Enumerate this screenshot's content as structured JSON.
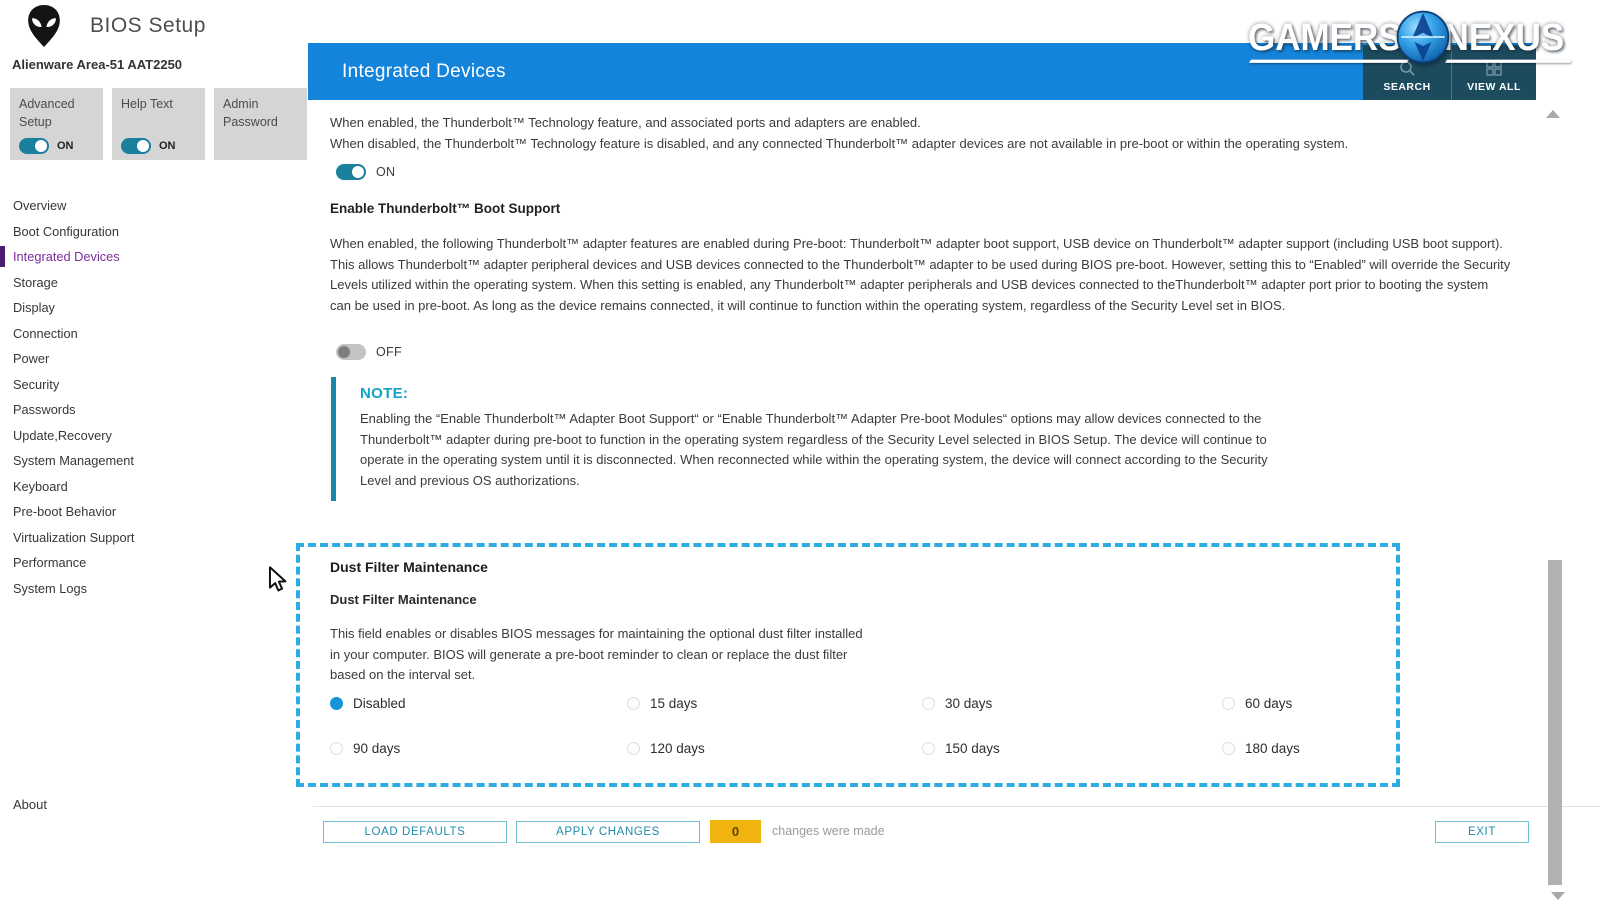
{
  "window": {
    "app_title": "BIOS Setup",
    "model": "Alienware Area-51 AAT2250"
  },
  "header_toggles": [
    {
      "label": "Advanced Setup",
      "state": "ON"
    },
    {
      "label": "Help Text",
      "state": "ON"
    },
    {
      "label": "Admin Password",
      "state": null
    }
  ],
  "sidebar": {
    "items": [
      {
        "label": "Overview",
        "selected": false
      },
      {
        "label": "Boot Configuration",
        "selected": false
      },
      {
        "label": "Integrated Devices",
        "selected": true
      },
      {
        "label": "Storage",
        "selected": false
      },
      {
        "label": "Display",
        "selected": false
      },
      {
        "label": "Connection",
        "selected": false
      },
      {
        "label": "Power",
        "selected": false
      },
      {
        "label": "Security",
        "selected": false
      },
      {
        "label": "Passwords",
        "selected": false
      },
      {
        "label": "Update,Recovery",
        "selected": false
      },
      {
        "label": "System Management",
        "selected": false
      },
      {
        "label": "Keyboard",
        "selected": false
      },
      {
        "label": "Pre-boot Behavior",
        "selected": false
      },
      {
        "label": "Virtualization Support",
        "selected": false
      },
      {
        "label": "Performance",
        "selected": false
      },
      {
        "label": "System Logs",
        "selected": false
      }
    ],
    "about": "About"
  },
  "page": {
    "title": "Integrated Devices",
    "search_label": "SEARCH",
    "view_all_label": "VIEW ALL"
  },
  "watermark": {
    "left": "GAMERS",
    "right": "NEXUS"
  },
  "content": {
    "thunderbolt_line1": "When enabled, the Thunderbolt™ Technology feature, and associated ports and adapters are enabled.",
    "thunderbolt_line2": "When disabled, the Thunderbolt™ Technology feature is disabled, and any connected Thunderbolt™ adapter devices are not available in pre-boot or within the operating system.",
    "thunderbolt_toggle_state": "ON",
    "boot_support_heading": "Enable Thunderbolt™ Boot Support",
    "boot_support_para": "When enabled, the following Thunderbolt™ adapter features are enabled during Pre-boot:  Thunderbolt™ adapter boot support, USB device on Thunderbolt™ adapter support (including USB boot support). This allows Thunderbolt™ adapter peripheral devices and USB devices connected to the Thunderbolt™ adapter to be used during BIOS pre-boot. However, setting this to “Enabled” will override the Security Levels utilized within the operating system. When this setting is enabled, any Thunderbolt™ adapter peripherals and USB devices connected to theThunderbolt™ adapter port prior to booting the system can be used in pre-boot. As long as the device remains connected, it will continue to function within the operating system, regardless of the Security Level set in BIOS.",
    "boot_support_toggle_state": "OFF",
    "note": {
      "label": "NOTE:",
      "text": "Enabling the “Enable Thunderbolt™ Adapter Boot Support“  or “Enable Thunderbolt™ Adapter Pre-boot Modules“ options may allow devices connected to the Thunderbolt™ adapter during pre-boot to function in the operating system regardless of the Security Level selected in BIOS Setup.  The device will continue to operate in the operating system until it is disconnected. When reconnected while within the operating system, the device will connect according to the Security Level and previous OS authorizations."
    },
    "dust_filter": {
      "heading": "Dust Filter Maintenance",
      "subheading": "Dust Filter Maintenance",
      "description": "This field enables or disables BIOS messages for maintaining  the optional dust filter installed in your computer. BIOS will generate a pre-boot reminder to clean or replace the dust filter based on the interval set.",
      "options": [
        {
          "label": "Disabled",
          "selected": true
        },
        {
          "label": "15 days",
          "selected": false
        },
        {
          "label": "30 days",
          "selected": false
        },
        {
          "label": "60 days",
          "selected": false
        },
        {
          "label": "90 days",
          "selected": false
        },
        {
          "label": "120 days",
          "selected": false
        },
        {
          "label": "150 days",
          "selected": false
        },
        {
          "label": "180 days",
          "selected": false
        }
      ]
    }
  },
  "footer": {
    "load_defaults": "LOAD DEFAULTS",
    "apply_changes": "APPLY CHANGES",
    "changes_count": "0",
    "changes_text": "changes were made",
    "exit": "EXIT"
  },
  "colors": {
    "accent-blue": "#1484db",
    "dark-btn": "#1c4b5e",
    "teal": "#1b7f9e",
    "note-teal": "#12a3c4",
    "purple": "#7b2d9b",
    "purple-bar": "#4a1d6e",
    "dash": "#2cace3",
    "amber": "#f0b310",
    "btn-teal": "#1f8ca8",
    "radio-blue": "#1495d9"
  }
}
